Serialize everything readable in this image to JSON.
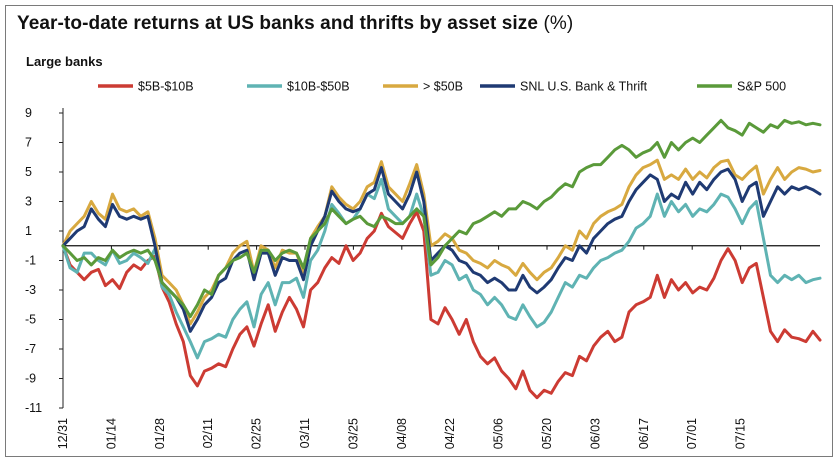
{
  "title": "Year-to-date returns at US banks and thrifts by asset size",
  "title_unit": "(%)",
  "subtitle": "Large banks",
  "chart_data": {
    "type": "line",
    "title": "Year-to-date returns at US banks and thrifts by asset size (%)",
    "subtitle": "Large banks",
    "xlabel": "",
    "ylabel": "",
    "ylim": [
      -11,
      9
    ],
    "yticks": [
      9,
      7,
      5,
      3,
      1,
      -1,
      -3,
      -5,
      -7,
      -9,
      -11
    ],
    "x_tick_labels": [
      "12/31",
      "01/14",
      "01/28",
      "02/11",
      "02/25",
      "03/11",
      "03/25",
      "04/08",
      "04/22",
      "05/06",
      "05/20",
      "06/03",
      "06/17",
      "07/01",
      "07/15"
    ],
    "legend_position": "top",
    "grid": false,
    "series": [
      {
        "name": "$5B-$10B",
        "color": "#cc3b33",
        "values": [
          0.0,
          -1.3,
          -1.8,
          -2.3,
          -1.8,
          -1.6,
          -2.7,
          -2.3,
          -2.9,
          -1.8,
          -1.3,
          -1.6,
          -1.0,
          -0.7,
          -2.8,
          -3.8,
          -5.3,
          -6.5,
          -8.8,
          -9.5,
          -8.5,
          -8.3,
          -8.0,
          -8.2,
          -7.0,
          -6.0,
          -5.5,
          -6.8,
          -5.3,
          -4.0,
          -5.8,
          -4.5,
          -3.5,
          -4.3,
          -5.5,
          -3.0,
          -2.5,
          -1.5,
          -0.8,
          -1.2,
          0.0,
          -1.0,
          -0.5,
          0.5,
          1.0,
          2.2,
          1.3,
          0.9,
          0.5,
          1.5,
          2.3,
          1.0,
          -5.0,
          -5.3,
          -4.2,
          -5.0,
          -6.0,
          -5.0,
          -6.5,
          -7.5,
          -8.0,
          -7.6,
          -8.5,
          -9.0,
          -9.7,
          -8.5,
          -9.8,
          -10.3,
          -9.8,
          -10.0,
          -9.2,
          -8.6,
          -8.8,
          -7.5,
          -7.8,
          -6.8,
          -6.2,
          -5.8,
          -6.5,
          -6.2,
          -4.5,
          -4.0,
          -3.8,
          -3.5,
          -2.0,
          -3.5,
          -2.3,
          -3.0,
          -2.5,
          -3.2,
          -2.8,
          -3.0,
          -2.2,
          -1.0,
          -0.2,
          -1.0,
          -2.5,
          -1.5,
          -1.2,
          -3.5,
          -5.8,
          -6.5,
          -5.7,
          -6.2,
          -6.3,
          -6.5,
          -5.8,
          -6.4
        ]
      },
      {
        "name": "$10B-$50B",
        "color": "#5fb3b3",
        "values": [
          0.0,
          -1.5,
          -1.8,
          -0.5,
          -0.5,
          -1.0,
          -1.3,
          -0.3,
          -1.2,
          -1.0,
          -0.5,
          -0.8,
          -1.2,
          -0.2,
          -2.8,
          -3.3,
          -4.5,
          -5.5,
          -6.5,
          -7.6,
          -6.5,
          -6.3,
          -6.0,
          -6.2,
          -5.0,
          -4.3,
          -3.8,
          -5.5,
          -3.3,
          -2.5,
          -4.0,
          -2.5,
          -2.5,
          -2.2,
          -3.5,
          -1.0,
          -0.3,
          1.0,
          2.8,
          2.2,
          1.5,
          1.8,
          2.5,
          3.5,
          3.2,
          4.5,
          2.5,
          2.0,
          1.5,
          2.0,
          3.5,
          2.0,
          -2.0,
          -1.8,
          -1.0,
          -1.3,
          -2.3,
          -2.0,
          -3.0,
          -3.3,
          -4.0,
          -3.5,
          -4.0,
          -4.8,
          -5.0,
          -4.0,
          -4.8,
          -5.5,
          -5.2,
          -4.5,
          -3.5,
          -2.5,
          -2.8,
          -2.0,
          -2.2,
          -1.5,
          -1.0,
          -0.8,
          -0.5,
          -0.3,
          0.3,
          1.2,
          1.5,
          2.0,
          3.5,
          2.0,
          3.0,
          2.3,
          2.8,
          2.0,
          2.5,
          2.3,
          2.8,
          3.5,
          3.3,
          2.5,
          1.5,
          2.5,
          3.0,
          0.5,
          -2.0,
          -2.5,
          -2.0,
          -2.3,
          -2.0,
          -2.5,
          -2.3,
          -2.2
        ]
      },
      {
        "name": "> $50B",
        "color": "#d8a940",
        "values": [
          0.0,
          1.0,
          1.5,
          2.0,
          3.0,
          2.2,
          1.8,
          3.5,
          2.5,
          2.3,
          2.5,
          2.0,
          2.3,
          0.5,
          -2.0,
          -2.5,
          -3.0,
          -4.0,
          -5.3,
          -4.5,
          -3.5,
          -3.0,
          -2.0,
          -1.5,
          -0.5,
          0.0,
          0.3,
          -1.8,
          0.0,
          -0.3,
          -1.5,
          -0.3,
          -0.5,
          -0.5,
          -1.8,
          0.5,
          1.3,
          2.0,
          4.0,
          3.3,
          2.8,
          2.5,
          3.0,
          4.0,
          4.3,
          5.7,
          4.0,
          3.5,
          3.0,
          4.2,
          5.5,
          3.5,
          0.0,
          0.3,
          0.8,
          0.5,
          -0.3,
          -0.5,
          -1.0,
          -1.2,
          -1.5,
          -1.0,
          -1.3,
          -1.5,
          -2.0,
          -1.2,
          -1.8,
          -2.3,
          -1.8,
          -1.5,
          -0.8,
          0.0,
          -0.3,
          1.0,
          0.5,
          1.5,
          2.0,
          2.3,
          2.5,
          2.8,
          4.0,
          4.8,
          5.3,
          5.5,
          5.8,
          4.5,
          4.8,
          4.5,
          5.2,
          4.5,
          5.0,
          4.6,
          5.3,
          5.7,
          5.8,
          4.8,
          4.5,
          5.0,
          5.4,
          3.5,
          4.5,
          5.3,
          4.5,
          5.0,
          5.3,
          5.2,
          5.0,
          5.1
        ]
      },
      {
        "name": "SNL U.S. Bank & Thrift",
        "color": "#1f3a73",
        "values": [
          0.0,
          0.5,
          1.0,
          1.3,
          2.5,
          1.8,
          1.3,
          2.8,
          2.0,
          1.8,
          2.0,
          1.8,
          2.0,
          0.0,
          -2.5,
          -3.0,
          -3.5,
          -4.3,
          -5.8,
          -5.0,
          -4.0,
          -3.5,
          -2.5,
          -2.2,
          -1.0,
          -0.5,
          -0.3,
          -2.3,
          -0.5,
          -0.5,
          -2.0,
          -0.8,
          -1.0,
          -1.0,
          -2.3,
          0.0,
          1.0,
          2.0,
          3.7,
          3.0,
          2.5,
          2.3,
          2.5,
          3.5,
          3.8,
          5.3,
          3.5,
          3.0,
          2.5,
          3.5,
          5.0,
          3.0,
          -1.0,
          -0.5,
          0.0,
          -0.3,
          -1.0,
          -1.2,
          -1.8,
          -2.0,
          -2.5,
          -2.2,
          -2.5,
          -3.0,
          -3.0,
          -2.0,
          -2.8,
          -3.2,
          -2.8,
          -2.3,
          -1.5,
          -0.8,
          -1.0,
          0.0,
          -0.5,
          0.5,
          1.0,
          1.5,
          1.8,
          2.0,
          3.0,
          3.8,
          4.3,
          4.8,
          4.5,
          3.0,
          3.5,
          3.2,
          4.3,
          3.5,
          4.3,
          3.8,
          4.5,
          5.0,
          5.2,
          4.5,
          3.0,
          4.0,
          4.3,
          2.0,
          3.0,
          4.0,
          3.5,
          4.0,
          3.8,
          4.0,
          3.8,
          3.5
        ]
      },
      {
        "name": "S&P 500",
        "color": "#5a9a3a",
        "values": [
          0.0,
          -0.5,
          -1.0,
          -0.8,
          -1.3,
          -0.8,
          -1.0,
          -0.3,
          -0.8,
          -0.5,
          -0.3,
          -0.5,
          -0.3,
          -1.0,
          -2.5,
          -3.0,
          -3.5,
          -4.0,
          -4.8,
          -4.0,
          -3.0,
          -3.3,
          -2.0,
          -1.5,
          -1.0,
          -0.8,
          -0.5,
          -1.8,
          -0.3,
          -0.3,
          -1.0,
          -0.5,
          -0.3,
          -0.5,
          -1.5,
          0.5,
          1.0,
          1.5,
          2.5,
          2.0,
          1.5,
          1.8,
          2.0,
          1.5,
          1.3,
          2.0,
          1.8,
          1.5,
          1.5,
          2.0,
          2.5,
          2.0,
          -1.3,
          -0.8,
          0.0,
          0.5,
          1.0,
          0.8,
          1.5,
          1.7,
          2.0,
          2.3,
          2.0,
          2.5,
          2.5,
          3.0,
          2.8,
          2.5,
          3.0,
          3.3,
          3.8,
          4.2,
          4.0,
          5.0,
          5.3,
          5.5,
          5.5,
          6.0,
          6.5,
          6.8,
          6.5,
          6.0,
          6.3,
          6.5,
          7.0,
          6.0,
          7.0,
          6.5,
          7.0,
          7.3,
          7.0,
          7.5,
          8.0,
          8.5,
          8.0,
          7.8,
          7.5,
          8.3,
          8.0,
          7.7,
          8.2,
          8.0,
          8.5,
          8.3,
          8.4,
          8.2,
          8.3,
          8.2
        ]
      }
    ]
  }
}
